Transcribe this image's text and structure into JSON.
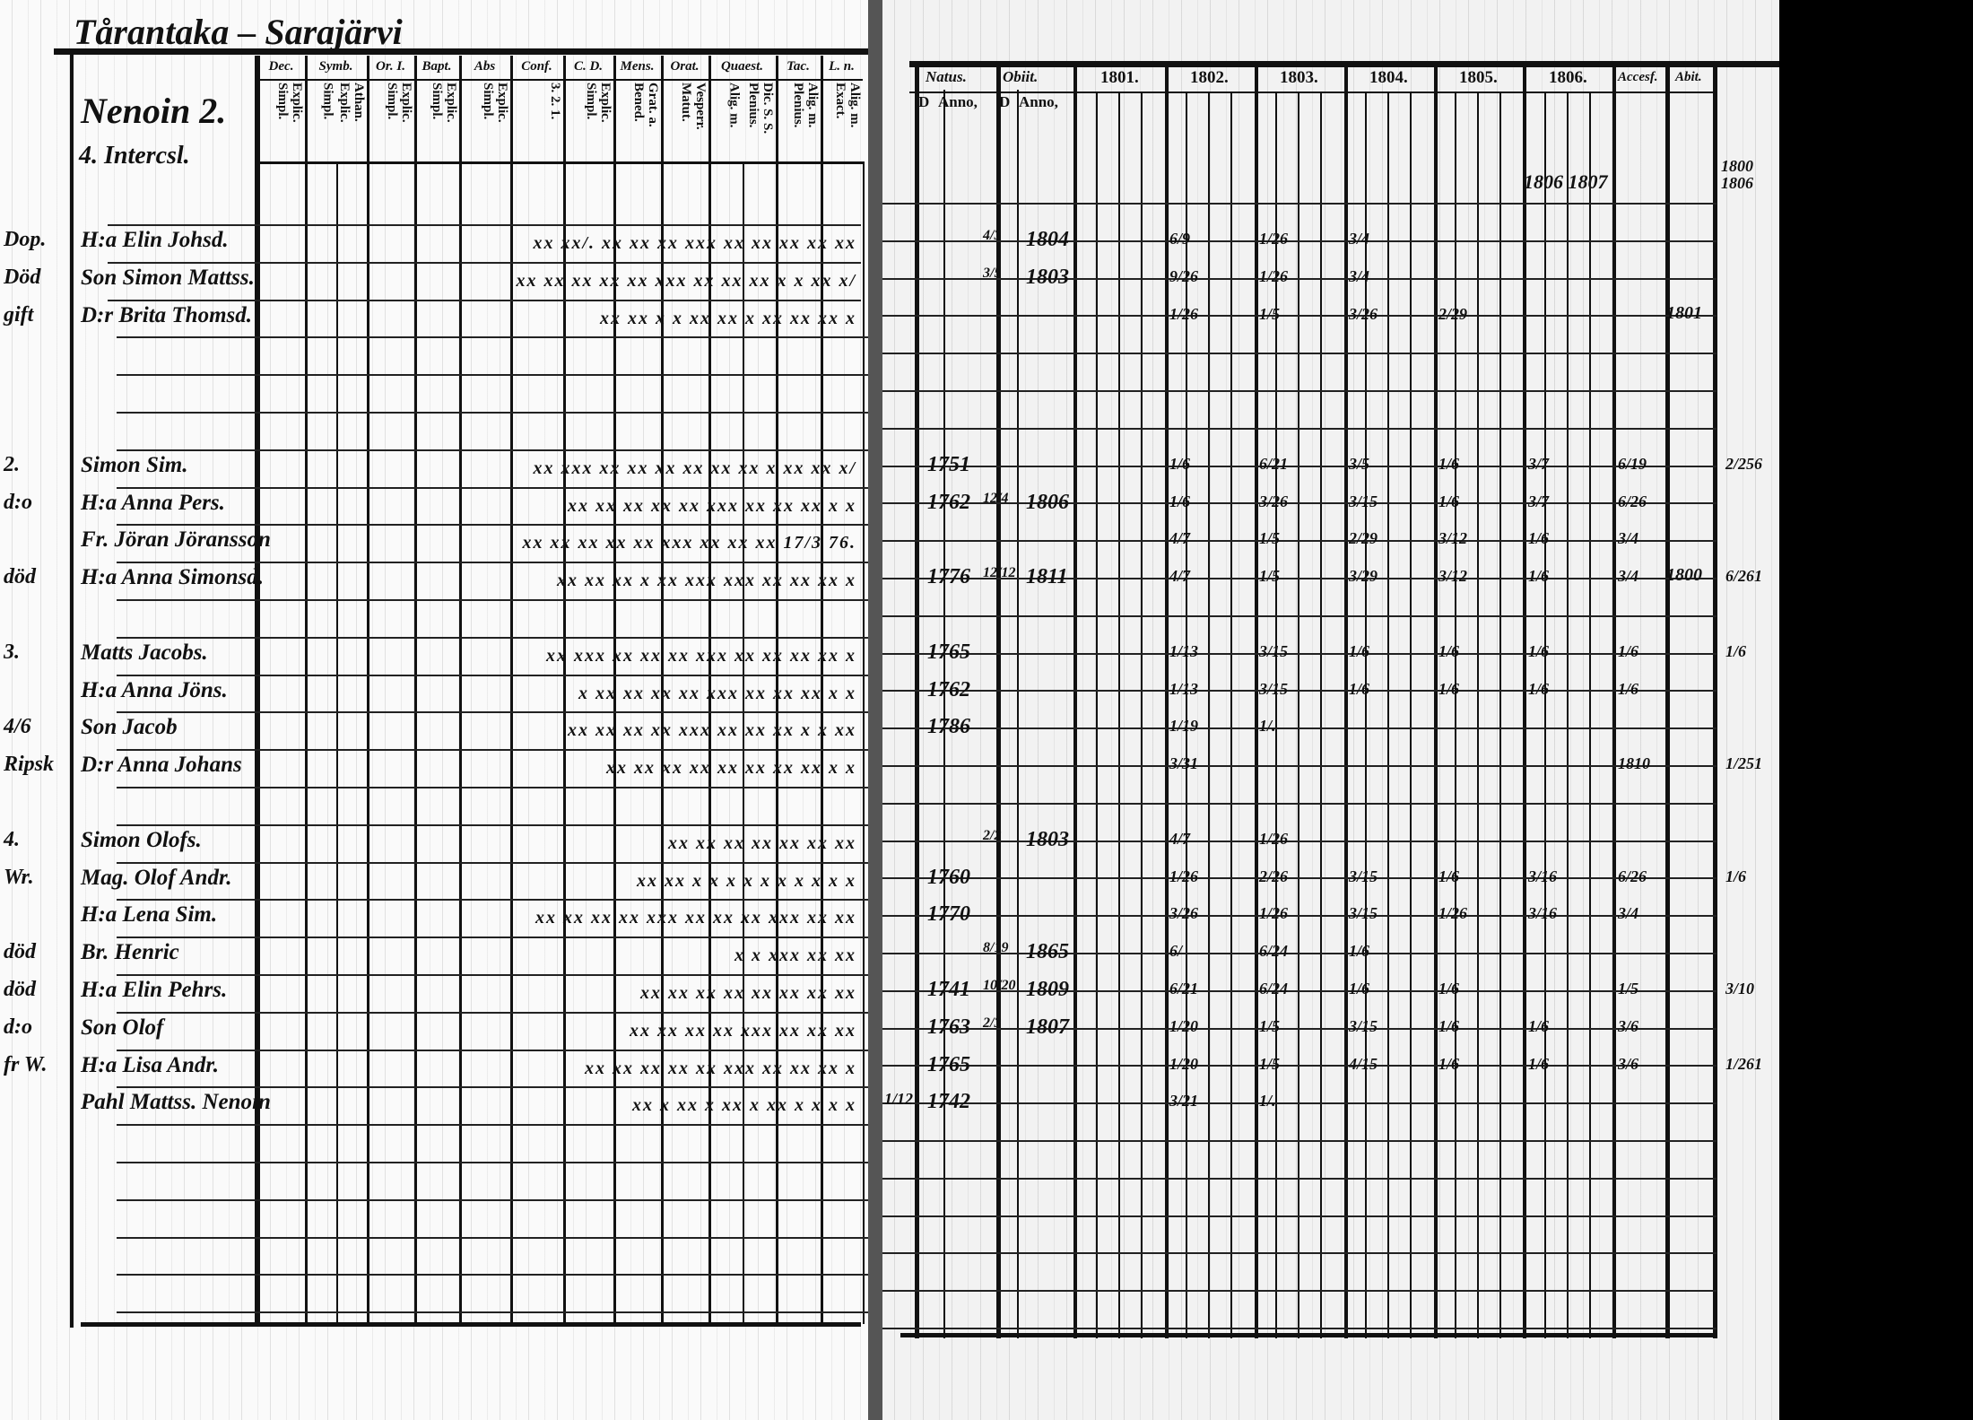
{
  "left_page": {
    "title": "Tårantaka – Sarajärvi",
    "house_number": "Nenoin 2.",
    "subtitle": "4. Intercsl.",
    "column_groups": [
      {
        "label": "Dec.",
        "sub": [
          "Explic. Simpl."
        ]
      },
      {
        "label": "Symb.",
        "sub": [
          "Simpl.",
          "Athan. Explic."
        ]
      },
      {
        "label": "Or. I.",
        "sub": [
          "Explic. Simpl."
        ]
      },
      {
        "label": "Bapt.",
        "sub": [
          "Explic. Simpl."
        ]
      },
      {
        "label": "Abs",
        "sub": [
          "Explic. Simpl."
        ]
      },
      {
        "label": "Conf.",
        "sub": [
          "3. 2. 1."
        ]
      },
      {
        "label": "C. D.",
        "sub": [
          "Explic. Simpl."
        ]
      },
      {
        "label": "Mens.",
        "sub": [
          "Grat. a. Bened."
        ]
      },
      {
        "label": "Orat.",
        "sub": [
          "Vesperr. Matut."
        ]
      },
      {
        "label": "Quaest.",
        "sub": [
          "Alig. m.",
          "Dic. S. S. Plenius."
        ]
      },
      {
        "label": "Tac.",
        "sub": [
          "Alig. m. Plenius."
        ]
      },
      {
        "label": "L. n.",
        "sub": [
          "Alig. m. Exact."
        ]
      }
    ]
  },
  "right_page": {
    "headers": {
      "natus": "Natus.",
      "obiit": "Obiit.",
      "years": [
        "1801.",
        "1802.",
        "1803.",
        "1804.",
        "1805.",
        "1806."
      ],
      "accessit": "Accesf.",
      "abiit": "Abit.",
      "d": "D",
      "anno": "Anno,"
    },
    "top_note": "1806 1807",
    "side_note": "1800 1806"
  },
  "rows": [
    {
      "margin": "Dop.",
      "name": "H:a Elin Johsd.",
      "marks": "xx xx/. xx xx xx xxx xx xx xx xx xx",
      "obiit_d": "4/3",
      "obiit_anno": "1804",
      "years": [
        "6/9",
        "1/26",
        "3/4",
        "",
        "",
        ""
      ]
    },
    {
      "margin": "Död",
      "name": "Son Simon Mattss.",
      "marks": "xx xx  xx xx xx xxx xx xx xx x x xx x/",
      "obiit_d": "3/5",
      "obiit_anno": "1803",
      "years": [
        "9/26",
        "1/26",
        "3/4",
        "",
        "",
        ""
      ]
    },
    {
      "margin": "gift",
      "name": "D:r Brita Thomsd.",
      "marks": "xx xx x x xx xx x xx xx xx x",
      "years": [
        "1/26",
        "1/5",
        "3/26",
        "2/29",
        "",
        ""
      ],
      "accessit": "1801"
    },
    {},
    {},
    {},
    {
      "margin": "2.",
      "name": "Simon Sim.",
      "marks": "xx xxx xx xx xx xx xx xx x xx xx x/",
      "natus_anno": "1751",
      "years": [
        "1/6",
        "6/21",
        "3/5",
        "1/6",
        "3/7",
        "6/19"
      ],
      "abiit": "2/256"
    },
    {
      "margin": "d:o",
      "name": "H:a Anna Pers.",
      "marks": "xx xx xx xx xx xxx xx xx xx x x",
      "natus_anno": "1762",
      "obiit_d": "12/4",
      "obiit_anno": "1806",
      "years": [
        "1/6",
        "3/26",
        "3/15",
        "1/6",
        "3/7",
        "6/26"
      ]
    },
    {
      "margin": "",
      "name": "Fr. Jöran Jöransson",
      "marks": "xx xx xx xx xx xxx xx xx xx 17/3 76.",
      "years": [
        "4/7",
        "1/5",
        "2/29",
        "3/12",
        "1/6",
        "3/4"
      ]
    },
    {
      "margin": "död",
      "name": "H:a Anna Simonsd.",
      "marks": "xx xx xx x xx xxx xxx xx xx xx x",
      "natus_anno": "1776",
      "obiit_d": "12/12",
      "obiit_anno": "1811",
      "years": [
        "4/7",
        "1/5",
        "3/29",
        "3/12",
        "1/6",
        "3/4"
      ],
      "accessit": "1800",
      "abiit": "6/261"
    },
    {},
    {
      "margin": "3.",
      "name": "Matts Jacobs.",
      "marks": "xx xxx xx xx xx xxx xx xx xx xx x",
      "natus_anno": "1765",
      "years": [
        "1/13",
        "3/15",
        "1/6",
        "1/6",
        "1/6",
        "1/6"
      ],
      "abiit": "1/6"
    },
    {
      "margin": "",
      "name": "H:a Anna Jöns.",
      "marks": "x xx xx xx xx xxx xx xx xx x x",
      "natus_anno": "1762",
      "years": [
        "1/13",
        "3/15",
        "1/6",
        "1/6",
        "1/6",
        "1/6"
      ]
    },
    {
      "margin": "4/6",
      "name": "Son Jacob",
      "marks": "xx xx xx xx xxx xx xx xx x x xx",
      "natus_anno": "1786",
      "years": [
        "1/19",
        "1/.",
        "",
        "",
        "",
        ""
      ]
    },
    {
      "margin": "Ripsk",
      "name": "D:r Anna Johans",
      "marks": "xx xx xx xx xx xx xx xx x x",
      "years": [
        "3/31",
        "",
        "",
        "",
        "",
        "1810"
      ],
      "abiit": "1/251"
    },
    {},
    {
      "margin": "4.",
      "name": "Simon Olofs.",
      "marks": "xx xx xx xx xx xx xx",
      "obiit_d": "2/2",
      "obiit_anno": "1803",
      "years": [
        "4/7",
        "1/26",
        "",
        "",
        "",
        ""
      ]
    },
    {
      "margin": "Wr.",
      "name": "Mag. Olof Andr.",
      "marks": "xx xx x x x x x x x x x x",
      "natus_anno": "1760",
      "years": [
        "1/26",
        "2/26",
        "3/15",
        "1/6",
        "3/16",
        "6/26"
      ],
      "abiit": "1/6"
    },
    {
      "margin": "",
      "name": "H:a Lena Sim.",
      "marks": "xx xx xx xx xxx xx xx xx xxx xx xx",
      "natus_anno": "1770",
      "years": [
        "3/26",
        "1/26",
        "3/15",
        "1/26",
        "3/16",
        "3/4"
      ]
    },
    {
      "margin": "död",
      "name": "Br. Henric",
      "marks": "x x xxx xx xx",
      "obiit_d": "8/19",
      "obiit_anno": "1865",
      "years": [
        "6/",
        "6/24",
        "1/6",
        "",
        "",
        ""
      ]
    },
    {
      "margin": "död",
      "name": "H:a Elin Pehrs.",
      "marks": "xx xx xx xx xx xx xx xx",
      "natus_anno": "1741",
      "obiit_d": "10/20",
      "obiit_anno": "1809",
      "years": [
        "6/21",
        "6/24",
        "1/6",
        "1/6",
        "",
        "1/5"
      ],
      "abiit": "3/10"
    },
    {
      "margin": "d:o",
      "name": "Son Olof",
      "marks": "xx xx xx xx xxx xx xx xx",
      "natus_anno": "1763",
      "obiit_d": "2/3",
      "obiit_anno": "1807",
      "years": [
        "1/20",
        "1/5",
        "3/15",
        "1/6",
        "1/6",
        "3/6"
      ]
    },
    {
      "margin": "fr W.",
      "name": "H:a Lisa Andr.",
      "marks": "xx xx xx xx xx xxx xx xx xx x",
      "natus_anno": "1765",
      "years": [
        "1/20",
        "1/5",
        "4/15",
        "1/6",
        "1/6",
        "3/6"
      ],
      "abiit": "1/261"
    },
    {
      "margin": "",
      "name": "Pahl Mattss. Nenoin",
      "marks": "xx x xx x xx x xx x x x x",
      "natus_d": "1/12",
      "natus_anno": "1742",
      "years": [
        "3/21",
        "1/.",
        "",
        "",
        "",
        ""
      ]
    },
    {},
    {},
    {},
    {},
    {}
  ]
}
